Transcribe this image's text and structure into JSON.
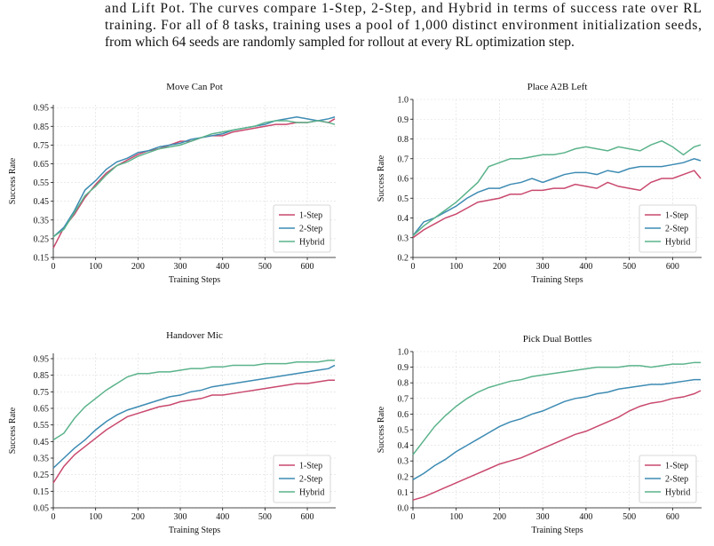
{
  "caption": {
    "lines": [
      "and Lift Pot.  The curves compare 1-Step, 2-Step, and Hybrid in terms of success rate over RL",
      "training. For all of 8 tasks, training uses a pool of 1,000 distinct environment initialization seeds,",
      "from which 64 seeds are randomly sampled for rollout at every RL optimization step."
    ]
  },
  "chart_data": [
    {
      "type": "line",
      "title": "Move Can Pot",
      "xlabel": "Training Steps",
      "ylabel": "Success Rate",
      "x": [
        0,
        25,
        50,
        75,
        100,
        125,
        150,
        175,
        200,
        225,
        250,
        275,
        300,
        325,
        350,
        375,
        400,
        425,
        450,
        475,
        500,
        525,
        550,
        575,
        600,
        625,
        650,
        665
      ],
      "series": [
        {
          "name": "1-Step",
          "color": "#c9496e",
          "values": [
            0.2,
            0.31,
            0.38,
            0.47,
            0.54,
            0.6,
            0.64,
            0.67,
            0.7,
            0.72,
            0.73,
            0.75,
            0.77,
            0.77,
            0.79,
            0.8,
            0.8,
            0.82,
            0.83,
            0.84,
            0.85,
            0.86,
            0.86,
            0.87,
            0.87,
            0.88,
            0.87,
            0.89
          ]
        },
        {
          "name": "2-Step",
          "color": "#3d8bb3",
          "values": [
            0.26,
            0.31,
            0.4,
            0.51,
            0.56,
            0.62,
            0.66,
            0.68,
            0.71,
            0.72,
            0.74,
            0.75,
            0.76,
            0.78,
            0.79,
            0.8,
            0.81,
            0.83,
            0.84,
            0.85,
            0.86,
            0.88,
            0.89,
            0.9,
            0.89,
            0.88,
            0.89,
            0.9
          ]
        },
        {
          "name": "Hybrid",
          "color": "#5bb38b",
          "values": [
            0.26,
            0.3,
            0.39,
            0.48,
            0.53,
            0.59,
            0.64,
            0.66,
            0.69,
            0.71,
            0.73,
            0.74,
            0.75,
            0.77,
            0.79,
            0.81,
            0.82,
            0.83,
            0.84,
            0.85,
            0.87,
            0.88,
            0.88,
            0.87,
            0.87,
            0.88,
            0.87,
            0.86
          ]
        }
      ],
      "xlim": [
        0,
        667
      ],
      "ylim": [
        0.15,
        0.965
      ],
      "xticks": [
        0,
        100,
        200,
        300,
        400,
        500,
        600
      ],
      "yticks": [
        0.15,
        0.25,
        0.35,
        0.45,
        0.55,
        0.65,
        0.75,
        0.85,
        0.95
      ],
      "grid": true,
      "legend": "lower right"
    },
    {
      "type": "line",
      "title": "Place A2B Left",
      "xlabel": "Training Steps",
      "ylabel": "Success Rate",
      "x": [
        0,
        25,
        50,
        75,
        100,
        125,
        150,
        175,
        200,
        225,
        250,
        275,
        300,
        325,
        350,
        375,
        400,
        425,
        450,
        475,
        500,
        525,
        550,
        575,
        600,
        625,
        650,
        665
      ],
      "series": [
        {
          "name": "1-Step",
          "color": "#c9496e",
          "values": [
            0.3,
            0.34,
            0.37,
            0.4,
            0.42,
            0.45,
            0.48,
            0.49,
            0.5,
            0.52,
            0.52,
            0.54,
            0.54,
            0.55,
            0.55,
            0.57,
            0.56,
            0.55,
            0.58,
            0.56,
            0.55,
            0.54,
            0.58,
            0.6,
            0.6,
            0.62,
            0.64,
            0.6
          ]
        },
        {
          "name": "2-Step",
          "color": "#3d8bb3",
          "values": [
            0.31,
            0.38,
            0.4,
            0.43,
            0.46,
            0.5,
            0.53,
            0.55,
            0.55,
            0.57,
            0.58,
            0.6,
            0.58,
            0.6,
            0.62,
            0.63,
            0.63,
            0.62,
            0.64,
            0.63,
            0.65,
            0.66,
            0.66,
            0.66,
            0.67,
            0.68,
            0.7,
            0.69
          ]
        },
        {
          "name": "Hybrid",
          "color": "#5bb38b",
          "values": [
            0.31,
            0.36,
            0.4,
            0.44,
            0.48,
            0.53,
            0.58,
            0.66,
            0.68,
            0.7,
            0.7,
            0.71,
            0.72,
            0.72,
            0.73,
            0.75,
            0.76,
            0.75,
            0.74,
            0.76,
            0.75,
            0.74,
            0.77,
            0.79,
            0.76,
            0.72,
            0.76,
            0.77
          ]
        }
      ],
      "xlim": [
        0,
        667
      ],
      "ylim": [
        0.2,
        1.0
      ],
      "xticks": [
        0,
        100,
        200,
        300,
        400,
        500,
        600
      ],
      "yticks": [
        0.2,
        0.3,
        0.4,
        0.5,
        0.6,
        0.7,
        0.8,
        0.9,
        {
          "value": 1,
          "label": "1.0"
        }
      ],
      "grid": true,
      "legend": "lower right"
    },
    {
      "type": "line",
      "title": "Handover Mic",
      "xlabel": "Training Steps",
      "ylabel": "Success Rate",
      "x": [
        0,
        25,
        50,
        75,
        100,
        125,
        150,
        175,
        200,
        225,
        250,
        275,
        300,
        325,
        350,
        375,
        400,
        425,
        450,
        475,
        500,
        525,
        550,
        575,
        600,
        625,
        650,
        665
      ],
      "series": [
        {
          "name": "1-Step",
          "color": "#c9496e",
          "values": [
            0.2,
            0.3,
            0.37,
            0.42,
            0.47,
            0.52,
            0.56,
            0.6,
            0.62,
            0.64,
            0.66,
            0.67,
            0.69,
            0.7,
            0.71,
            0.73,
            0.73,
            0.74,
            0.75,
            0.76,
            0.77,
            0.78,
            0.79,
            0.8,
            0.8,
            0.81,
            0.82,
            0.82
          ]
        },
        {
          "name": "2-Step",
          "color": "#3d8bb3",
          "values": [
            0.29,
            0.35,
            0.41,
            0.46,
            0.52,
            0.57,
            0.61,
            0.64,
            0.66,
            0.68,
            0.7,
            0.72,
            0.73,
            0.75,
            0.76,
            0.78,
            0.79,
            0.8,
            0.81,
            0.82,
            0.83,
            0.84,
            0.85,
            0.86,
            0.87,
            0.88,
            0.89,
            0.91
          ]
        },
        {
          "name": "Hybrid",
          "color": "#5bb38b",
          "values": [
            0.46,
            0.5,
            0.59,
            0.66,
            0.71,
            0.76,
            0.8,
            0.84,
            0.86,
            0.86,
            0.87,
            0.87,
            0.88,
            0.89,
            0.89,
            0.9,
            0.9,
            0.91,
            0.91,
            0.91,
            0.92,
            0.92,
            0.92,
            0.93,
            0.93,
            0.93,
            0.94,
            0.94
          ]
        }
      ],
      "xlim": [
        0,
        667
      ],
      "ylim": [
        0.05,
        0.982
      ],
      "xticks": [
        0,
        100,
        200,
        300,
        400,
        500,
        600
      ],
      "yticks": [
        0.05,
        0.15,
        0.25,
        0.35,
        0.45,
        0.55,
        0.65,
        0.75,
        0.85,
        0.95
      ],
      "grid": true,
      "legend": "lower right"
    },
    {
      "type": "line",
      "title": "Pick Dual Bottles",
      "xlabel": "Training Steps",
      "ylabel": "Success Rate",
      "x": [
        0,
        25,
        50,
        75,
        100,
        125,
        150,
        175,
        200,
        225,
        250,
        275,
        300,
        325,
        350,
        375,
        400,
        425,
        450,
        475,
        500,
        525,
        550,
        575,
        600,
        625,
        650,
        665
      ],
      "series": [
        {
          "name": "1-Step",
          "color": "#c9496e",
          "values": [
            0.05,
            0.07,
            0.1,
            0.13,
            0.16,
            0.19,
            0.22,
            0.25,
            0.28,
            0.3,
            0.32,
            0.35,
            0.38,
            0.41,
            0.44,
            0.47,
            0.49,
            0.52,
            0.55,
            0.58,
            0.62,
            0.65,
            0.67,
            0.68,
            0.7,
            0.71,
            0.73,
            0.75
          ]
        },
        {
          "name": "2-Step",
          "color": "#3d8bb3",
          "values": [
            0.18,
            0.22,
            0.27,
            0.31,
            0.36,
            0.4,
            0.44,
            0.48,
            0.52,
            0.55,
            0.57,
            0.6,
            0.62,
            0.65,
            0.68,
            0.7,
            0.71,
            0.73,
            0.74,
            0.76,
            0.77,
            0.78,
            0.79,
            0.79,
            0.8,
            0.81,
            0.82,
            0.82
          ]
        },
        {
          "name": "Hybrid",
          "color": "#5bb38b",
          "values": [
            0.34,
            0.43,
            0.52,
            0.59,
            0.65,
            0.7,
            0.74,
            0.77,
            0.79,
            0.81,
            0.82,
            0.84,
            0.85,
            0.86,
            0.87,
            0.88,
            0.89,
            0.9,
            0.9,
            0.9,
            0.91,
            0.91,
            0.9,
            0.91,
            0.92,
            0.92,
            0.93,
            0.93
          ]
        }
      ],
      "xlim": [
        0,
        667
      ],
      "ylim": [
        0,
        1.0
      ],
      "xticks": [
        0,
        100,
        200,
        300,
        400,
        500,
        600
      ],
      "yticks": [
        {
          "value": 0,
          "label": "0.0"
        },
        0.1,
        0.2,
        0.3,
        0.4,
        0.5,
        0.6,
        0.7,
        0.8,
        0.9,
        {
          "value": 1,
          "label": "1.0"
        }
      ],
      "grid": true,
      "legend": "lower right"
    }
  ]
}
